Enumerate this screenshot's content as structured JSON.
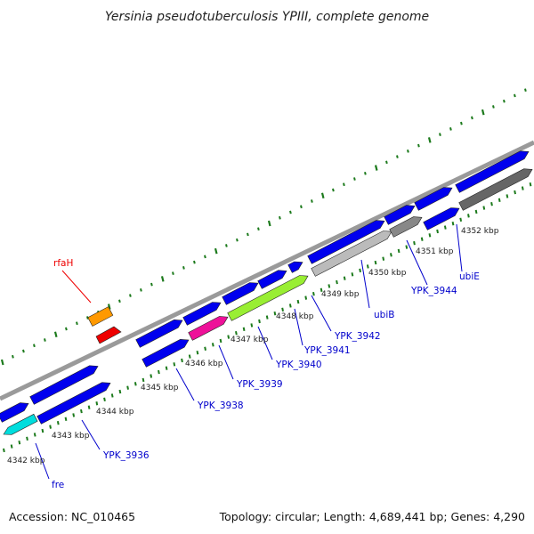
{
  "title": "Yersinia pseudotuberculosis YPIII, complete genome",
  "footer": {
    "accession": "Accession: NC_010465",
    "topology": "Topology: circular; Length: 4,689,441 bp; Genes: 4,290"
  },
  "colors": {
    "backbone": "#9a9a9a",
    "dots": "#1c7a1c",
    "gene_default": "#0000ee",
    "label_default": "#0000cc",
    "label_red": "#ee0000"
  },
  "ticks": [
    "4342 kbp",
    "4343 kbp",
    "4344 kbp",
    "4345 kbp",
    "4346 kbp",
    "4347 kbp",
    "4348 kbp",
    "4349 kbp",
    "4350 kbp",
    "4351 kbp",
    "4352 kbp"
  ],
  "labels": [
    {
      "id": "rfaH",
      "text": "rfaH"
    },
    {
      "id": "fre",
      "text": "fre"
    },
    {
      "id": "YPK_3936",
      "text": "YPK_3936"
    },
    {
      "id": "YPK_3938",
      "text": "YPK_3938"
    },
    {
      "id": "YPK_3939",
      "text": "YPK_3939"
    },
    {
      "id": "YPK_3940",
      "text": "YPK_3940"
    },
    {
      "id": "YPK_3941",
      "text": "YPK_3941"
    },
    {
      "id": "YPK_3942",
      "text": "YPK_3942"
    },
    {
      "id": "ubiB",
      "text": "ubiB"
    },
    {
      "id": "YPK_3944",
      "text": "YPK_3944"
    },
    {
      "id": "ubiE",
      "text": "ubiE"
    }
  ]
}
